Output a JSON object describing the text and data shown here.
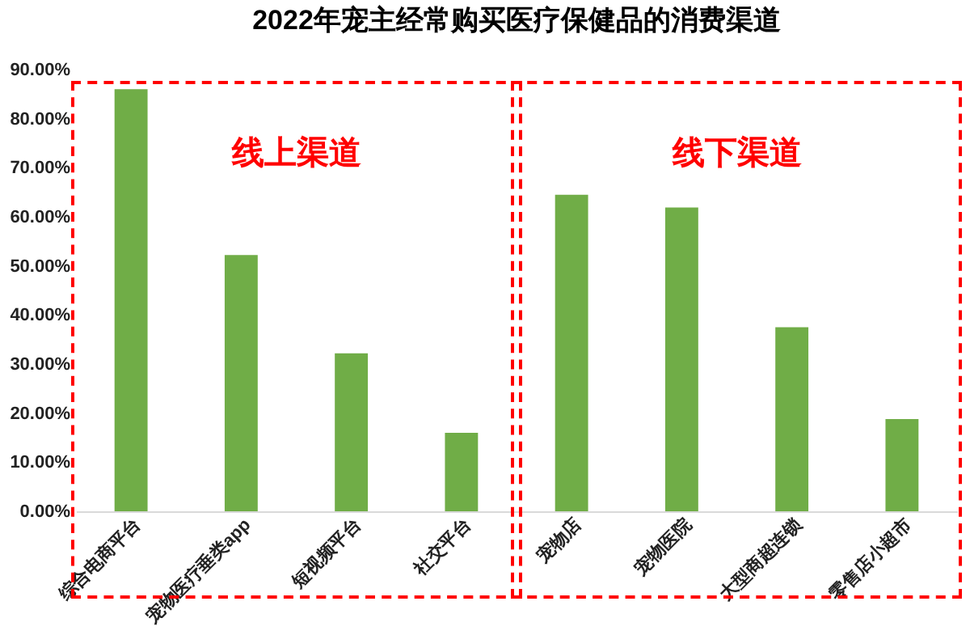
{
  "chart_data": {
    "type": "bar",
    "title": "2022年宠主经常购买医疗保健品的消费渠道",
    "categories": [
      "综合电商平台",
      "宠物医疗垂类app",
      "短视频平台",
      "社交平台",
      "宠物店",
      "宠物医院",
      "大型商超连锁",
      "零售店小超市"
    ],
    "values": [
      86.0,
      52.2,
      32.2,
      16.0,
      64.5,
      61.9,
      37.5,
      18.8
    ],
    "color": "#70ad47",
    "ylim": [
      0,
      90
    ],
    "yticks": [
      {
        "value": 0,
        "label": "0.00%"
      },
      {
        "value": 10,
        "label": "10.00%"
      },
      {
        "value": 20,
        "label": "20.00%"
      },
      {
        "value": 30,
        "label": "30.00%"
      },
      {
        "value": 40,
        "label": "40.00%"
      },
      {
        "value": 50,
        "label": "50.00%"
      },
      {
        "value": 60,
        "label": "60.00%"
      },
      {
        "value": 70,
        "label": "70.00%"
      },
      {
        "value": 80,
        "label": "80.00%"
      },
      {
        "value": 90,
        "label": "90.00%"
      }
    ],
    "annotations": [
      "线上渠道",
      "线下渠道"
    ],
    "grid": false
  }
}
